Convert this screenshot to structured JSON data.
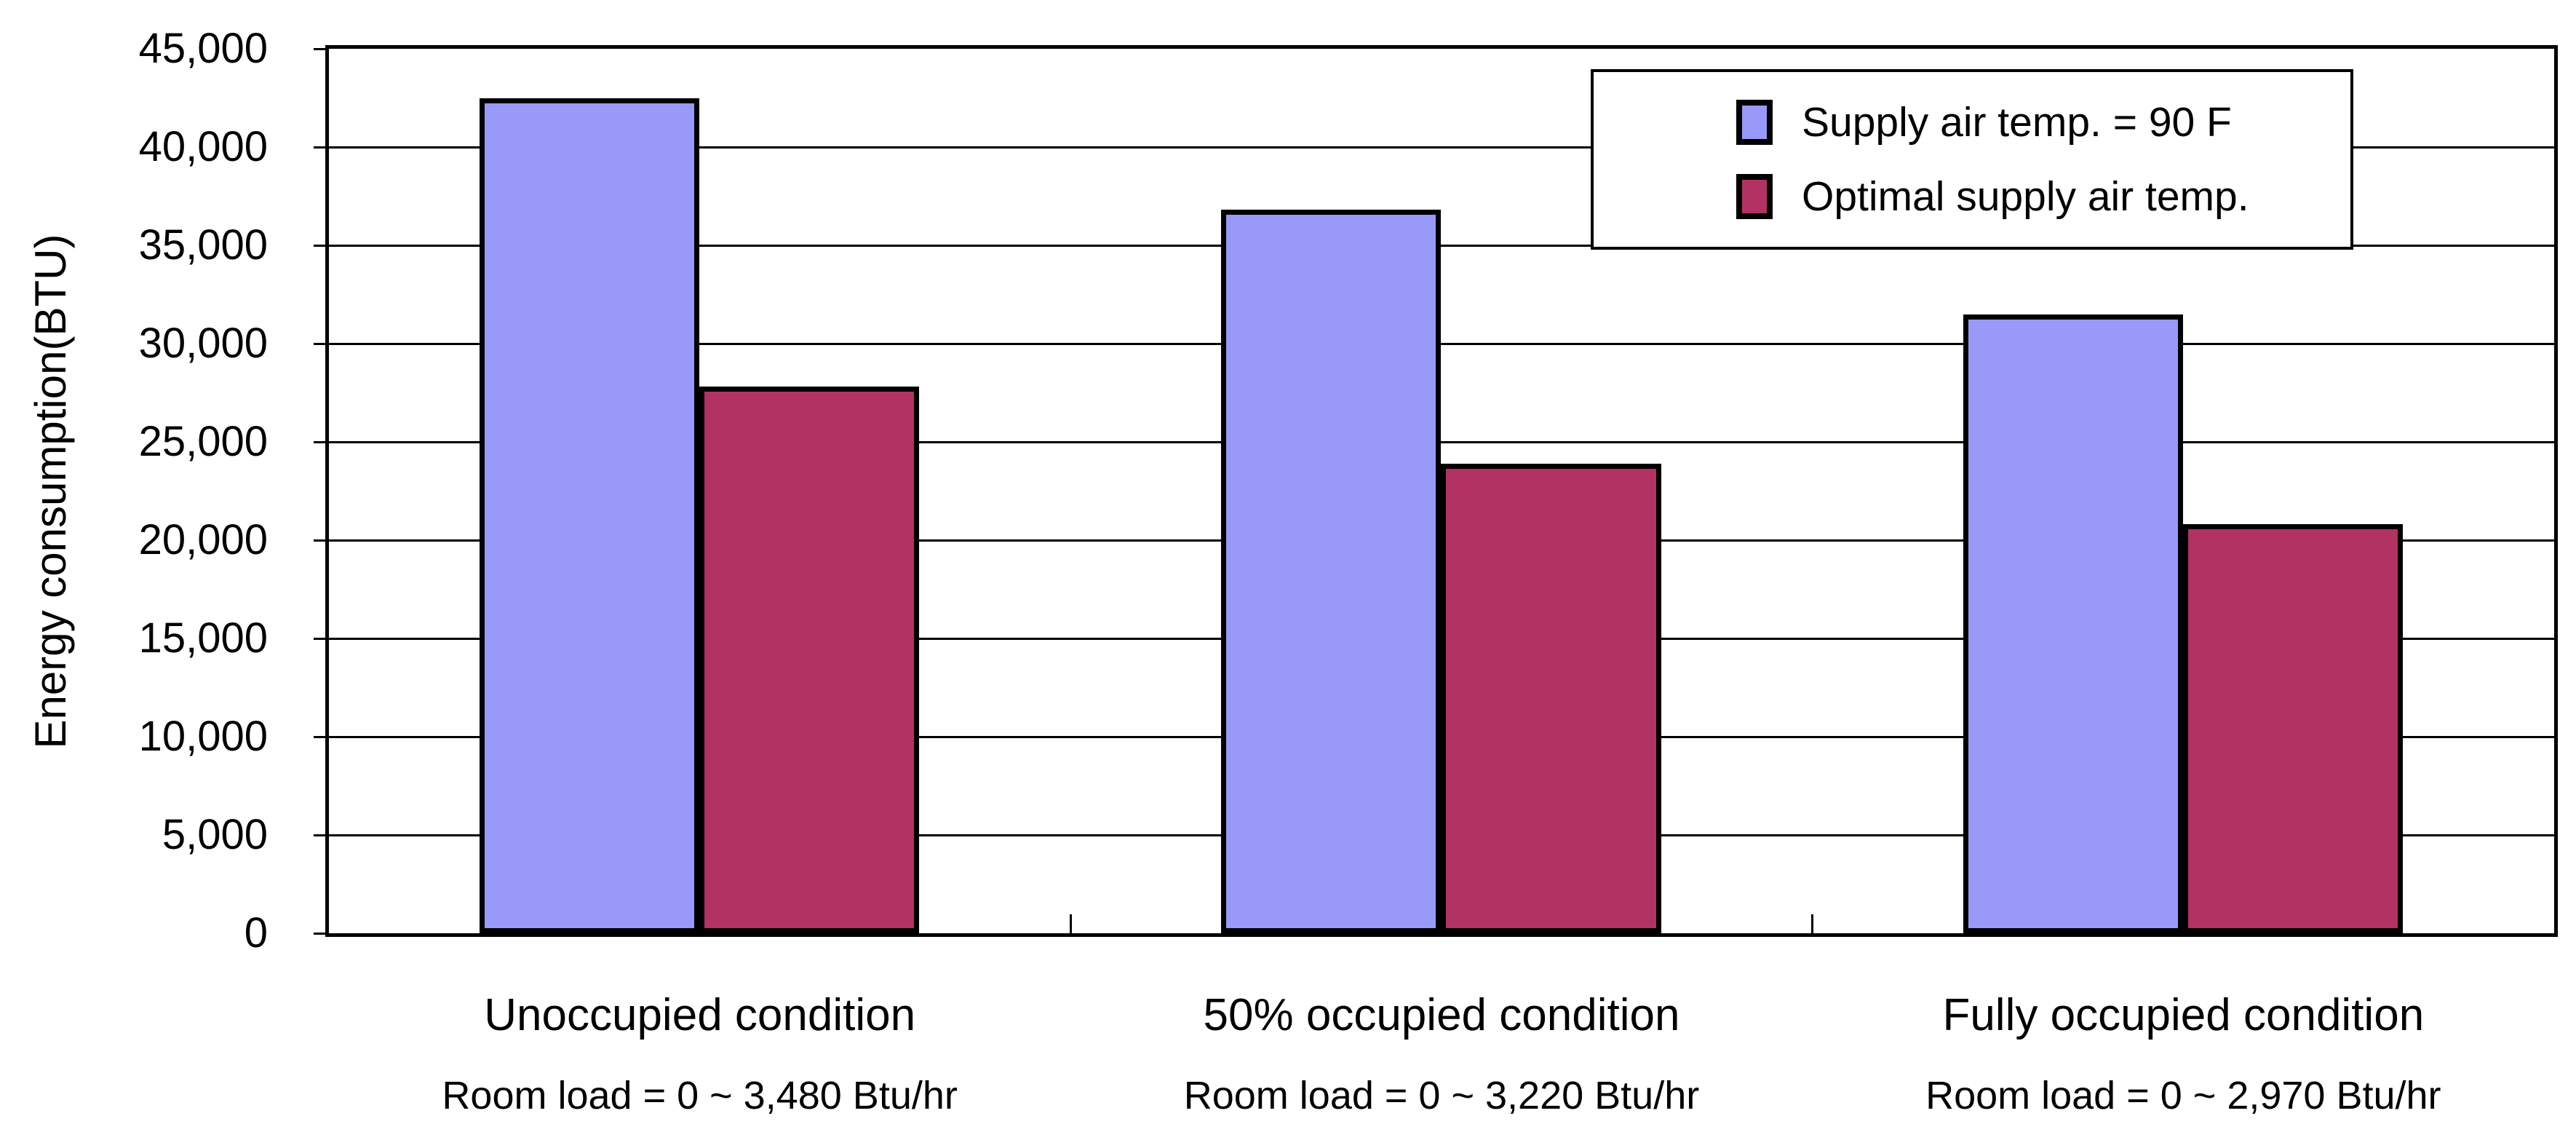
{
  "chart_data": {
    "type": "bar",
    "title": "",
    "ylabel": "Energy consumption(BTU)",
    "xlabel": "",
    "ylim": [
      0,
      45000
    ],
    "ytick_step": 5000,
    "ytick_labels": [
      "0",
      "5,000",
      "10,000",
      "15,000",
      "20,000",
      "25,000",
      "30,000",
      "35,000",
      "40,000",
      "45,000"
    ],
    "grid": true,
    "legend_position": "top-right",
    "categories": [
      "Unoccupied condition",
      "50% occupied condition",
      "Fully occupied condition"
    ],
    "category_sublabels": [
      "Room load = 0 ~ 3,480 Btu/hr",
      "Room load = 0 ~ 3,220 Btu/hr",
      "Room load = 0 ~ 2,970 Btu/hr"
    ],
    "series": [
      {
        "name": "Supply air temp. = 90 F",
        "color": "#9999FA",
        "values": [
          42500,
          36800,
          31500
        ]
      },
      {
        "name": "Optimal supply air temp.",
        "color": "#B23363",
        "values": [
          27800,
          23900,
          20800
        ]
      }
    ]
  },
  "colors": {
    "background": "#FFFFFF",
    "axis_and_grid": "#000000",
    "bar_border": "#000000",
    "series1_fill": "#9999FA",
    "series2_fill": "#B23363"
  }
}
